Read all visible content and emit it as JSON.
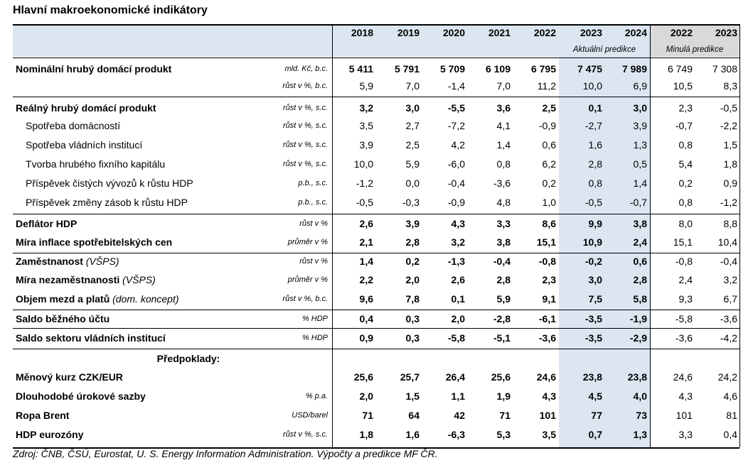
{
  "title": "Hlavní makroekonomické indikátory",
  "years": [
    "2018",
    "2019",
    "2020",
    "2021",
    "2022",
    "2023",
    "2024",
    "2022",
    "2023"
  ],
  "subheaders": {
    "current": "Aktuální predikce",
    "previous": "Minulá predikce"
  },
  "rows": [
    {
      "label": "Nominální hrubý domácí produkt",
      "bold": true,
      "indent": false,
      "unit": "mld. Kč, b.c.",
      "values": [
        "5 411",
        "5 791",
        "5 709",
        "6 109",
        "6 795",
        "7 475",
        "7 989",
        "6 749",
        "7 308"
      ]
    },
    {
      "label": "",
      "bold": false,
      "indent": false,
      "unit": "růst v %, b.c.",
      "values": [
        "5,9",
        "7,0",
        "-1,4",
        "7,0",
        "11,2",
        "10,0",
        "6,9",
        "10,5",
        "8,3"
      ]
    },
    {
      "label": "Reálný hrubý domácí produkt",
      "bold": true,
      "indent": false,
      "unit": "růst v %, s.c.",
      "values": [
        "3,2",
        "3,0",
        "-5,5",
        "3,6",
        "2,5",
        "0,1",
        "3,0",
        "2,3",
        "-0,5"
      ]
    },
    {
      "label": "Spotřeba domácností",
      "bold": false,
      "indent": true,
      "unit": "růst v %, s.c.",
      "values": [
        "3,5",
        "2,7",
        "-7,2",
        "4,1",
        "-0,9",
        "-2,7",
        "3,9",
        "-0,7",
        "-2,2"
      ]
    },
    {
      "label": "Spotřeba vládních institucí",
      "bold": false,
      "indent": true,
      "unit": "růst v %, s.c.",
      "values": [
        "3,9",
        "2,5",
        "4,2",
        "1,4",
        "0,6",
        "1,6",
        "1,3",
        "0,8",
        "1,5"
      ]
    },
    {
      "label": "Tvorba hrubého fixního kapitálu",
      "bold": false,
      "indent": true,
      "unit": "růst v %, s.c.",
      "values": [
        "10,0",
        "5,9",
        "-6,0",
        "0,8",
        "6,2",
        "2,8",
        "0,5",
        "5,4",
        "1,8"
      ]
    },
    {
      "label": "Příspěvek čistých vývozů k růstu HDP",
      "bold": false,
      "indent": true,
      "unit": "p.b., s.c.",
      "values": [
        "-1,2",
        "0,0",
        "-0,4",
        "-3,6",
        "0,2",
        "0,8",
        "1,4",
        "0,2",
        "0,9"
      ]
    },
    {
      "label": "Příspěvek změny zásob k růstu HDP",
      "bold": false,
      "indent": true,
      "unit": "p.b., s.c.",
      "values": [
        "-0,5",
        "-0,3",
        "-0,9",
        "4,8",
        "1,0",
        "-0,5",
        "-0,7",
        "0,8",
        "-1,2"
      ]
    },
    {
      "label": "Deflátor HDP",
      "bold": true,
      "indent": false,
      "unit": "růst v %",
      "values": [
        "2,6",
        "3,9",
        "4,3",
        "3,3",
        "8,6",
        "9,9",
        "3,8",
        "8,0",
        "8,8"
      ]
    },
    {
      "label": "Míra inflace spotřebitelských cen",
      "bold": true,
      "indent": false,
      "unit": "průměr v %",
      "values": [
        "2,1",
        "2,8",
        "3,2",
        "3,8",
        "15,1",
        "10,9",
        "2,4",
        "15,1",
        "10,4"
      ]
    },
    {
      "label": "Zaměstnanost",
      "suffix": " (VŠPS)",
      "bold": true,
      "indent": false,
      "unit": "růst v %",
      "values": [
        "1,4",
        "0,2",
        "-1,3",
        "-0,4",
        "-0,8",
        "-0,2",
        "0,6",
        "-0,8",
        "-0,4"
      ]
    },
    {
      "label": "Míra nezaměstnanosti",
      "suffix": " (VŠPS)",
      "bold": true,
      "indent": false,
      "unit": "průměr v %",
      "values": [
        "2,2",
        "2,0",
        "2,6",
        "2,8",
        "2,3",
        "3,0",
        "2,8",
        "2,4",
        "3,2"
      ]
    },
    {
      "label": "Objem mezd a platů",
      "suffix": " (dom. koncept)",
      "bold": true,
      "indent": false,
      "unit": "růst v %, b.c.",
      "values": [
        "9,6",
        "7,8",
        "0,1",
        "5,9",
        "9,1",
        "7,5",
        "5,8",
        "9,3",
        "6,7"
      ]
    },
    {
      "label": "Saldo běžného účtu",
      "bold": true,
      "indent": false,
      "unit": "% HDP",
      "values": [
        "0,4",
        "0,3",
        "2,0",
        "-2,8",
        "-6,1",
        "-3,5",
        "-1,9",
        "-5,8",
        "-3,6"
      ]
    },
    {
      "label": "Saldo sektoru vládních institucí",
      "bold": true,
      "indent": false,
      "unit": "% HDP",
      "values": [
        "0,9",
        "0,3",
        "-5,8",
        "-5,1",
        "-3,6",
        "-3,5",
        "-2,9",
        "-3,6",
        "-4,2"
      ]
    },
    {
      "label": "Předpoklady:",
      "bold": true,
      "indent": false,
      "center": true,
      "unit": "",
      "values": [
        "",
        "",
        "",
        "",
        "",
        "",
        "",
        "",
        ""
      ]
    },
    {
      "label": "Měnový kurz CZK/EUR",
      "bold": true,
      "indent": false,
      "unit": "",
      "values": [
        "25,6",
        "25,7",
        "26,4",
        "25,6",
        "24,6",
        "23,8",
        "23,8",
        "24,6",
        "24,2"
      ]
    },
    {
      "label": "Dlouhodobé úrokové sazby",
      "bold": true,
      "indent": false,
      "unit": "% p.a.",
      "values": [
        "2,0",
        "1,5",
        "1,1",
        "1,9",
        "4,3",
        "4,5",
        "4,0",
        "4,3",
        "4,6"
      ]
    },
    {
      "label": "Ropa Brent",
      "bold": true,
      "indent": false,
      "unit": "USD/barel",
      "values": [
        "71",
        "64",
        "42",
        "71",
        "101",
        "77",
        "73",
        "101",
        "81"
      ]
    },
    {
      "label": "HDP eurozóny",
      "bold": true,
      "indent": false,
      "unit": "růst v %, s.c.",
      "values": [
        "1,8",
        "1,6",
        "-6,3",
        "5,3",
        "3,5",
        "0,7",
        "1,3",
        "3,3",
        "0,4"
      ]
    }
  ],
  "source": "Zdroj: ČNB, ČSÚ, Eurostat, U. S. Energy Information Administration. Výpočty a predikce MF ČR."
}
